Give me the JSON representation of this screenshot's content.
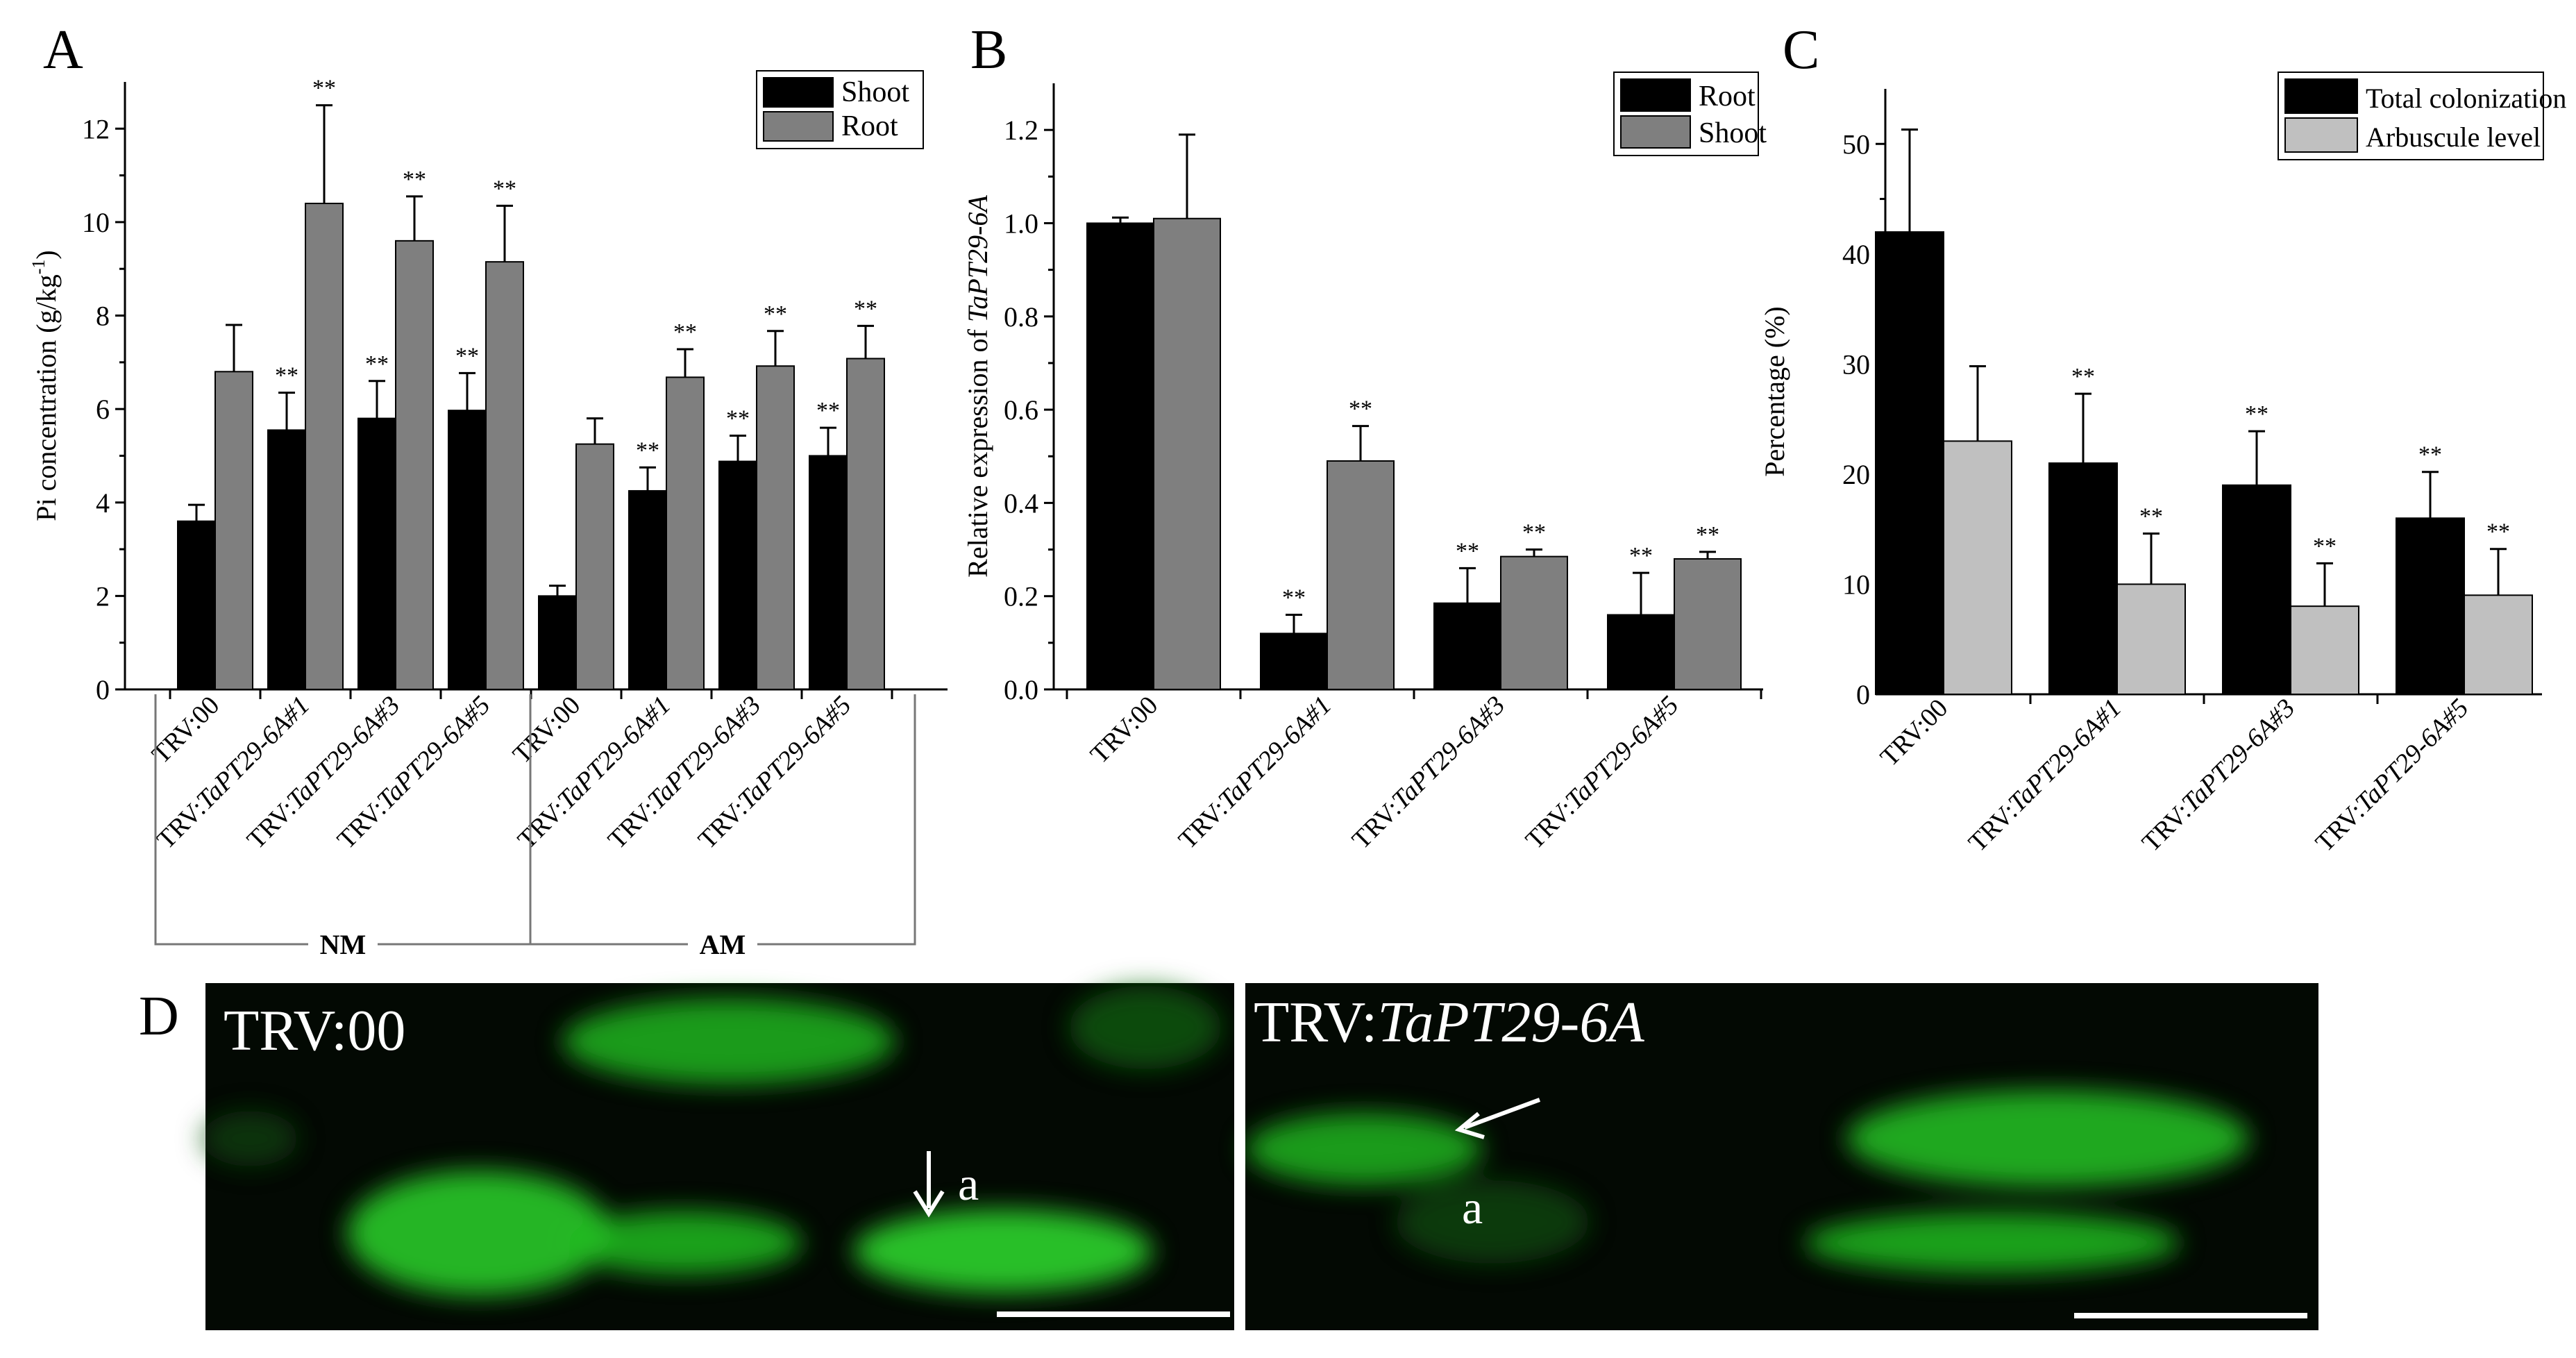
{
  "colors": {
    "black": "#000000",
    "dark_gray": "#7f7f7f",
    "light_gray": "#c0c0c0",
    "fluor": "#22cc22"
  },
  "significance_mark": "**",
  "chart_data": [
    {
      "panel": "A",
      "type": "bar",
      "ylabel": "Pi concentration (g/kg",
      "ylabel_sup": "-1",
      "ylabel_end": ")",
      "ylim": [
        0,
        13
      ],
      "yticks": [
        "0",
        "2",
        "4",
        "6",
        "8",
        "10",
        "12"
      ],
      "legend_position": "top-right",
      "categories": [
        {
          "pre": "TRV:00",
          "it": ""
        },
        {
          "pre": "TRV:",
          "it": "TaPT29-6A#1"
        },
        {
          "pre": "TRV:",
          "it": "TaPT29-6A#3"
        },
        {
          "pre": "TRV:",
          "it": "TaPT29-6A#5"
        },
        {
          "pre": "TRV:00",
          "it": ""
        },
        {
          "pre": "TRV:",
          "it": "TaPT29-6A#1"
        },
        {
          "pre": "TRV:",
          "it": "TaPT29-6A#3"
        },
        {
          "pre": "TRV:",
          "it": "TaPT29-6A#5"
        }
      ],
      "groups": [
        "NM",
        "AM"
      ],
      "series": [
        {
          "name": "Shoot",
          "color": "#000000",
          "values": [
            3.6,
            5.55,
            5.8,
            5.97,
            2.0,
            4.25,
            4.88,
            5.0
          ],
          "errors": [
            0.35,
            0.8,
            0.8,
            0.8,
            0.22,
            0.5,
            0.55,
            0.6
          ],
          "sig": [
            false,
            true,
            true,
            true,
            false,
            true,
            true,
            true
          ]
        },
        {
          "name": "Root",
          "color": "#7f7f7f",
          "values": [
            6.8,
            10.4,
            9.6,
            9.15,
            5.25,
            6.68,
            6.92,
            7.08
          ],
          "errors": [
            1.0,
            2.1,
            0.95,
            1.2,
            0.55,
            0.6,
            0.75,
            0.7
          ],
          "sig": [
            false,
            true,
            true,
            true,
            false,
            true,
            true,
            true
          ]
        }
      ]
    },
    {
      "panel": "B",
      "type": "bar",
      "ylabel": "Relative expression of ",
      "ylabel_it": "TaPT29-6A",
      "ylim": [
        0,
        1.3
      ],
      "yticks": [
        "0.0",
        "0.2",
        "0.4",
        "0.6",
        "0.8",
        "1.0",
        "1.2"
      ],
      "legend_position": "top-right",
      "categories": [
        {
          "pre": "TRV:00",
          "it": ""
        },
        {
          "pre": "TRV:",
          "it": "TaPT29-6A#1"
        },
        {
          "pre": "TRV:",
          "it": "TaPT29-6A#3"
        },
        {
          "pre": "TRV:",
          "it": "TaPT29-6A#5"
        }
      ],
      "series": [
        {
          "name": "Root",
          "color": "#000000",
          "values": [
            1.0,
            0.12,
            0.185,
            0.16
          ],
          "errors": [
            0.012,
            0.04,
            0.075,
            0.09
          ],
          "sig": [
            false,
            true,
            true,
            true
          ]
        },
        {
          "name": "Shoot",
          "color": "#7f7f7f",
          "values": [
            1.01,
            0.49,
            0.285,
            0.28
          ],
          "errors": [
            0.18,
            0.075,
            0.015,
            0.015
          ],
          "sig": [
            false,
            true,
            true,
            true
          ]
        }
      ]
    },
    {
      "panel": "C",
      "type": "bar",
      "ylabel": "Percentage (%)",
      "ylim": [
        0,
        55
      ],
      "yticks": [
        "0",
        "10",
        "20",
        "30",
        "40",
        "50"
      ],
      "legend_position": "top-right",
      "categories": [
        {
          "pre": "TRV:00",
          "it": ""
        },
        {
          "pre": "TRV:",
          "it": "TaPT29-6A#1"
        },
        {
          "pre": "TRV:",
          "it": "TaPT29-6A#3"
        },
        {
          "pre": "TRV:",
          "it": "TaPT29-6A#5"
        }
      ],
      "series": [
        {
          "name": "Total colonization",
          "color": "#000000",
          "values": [
            42,
            21,
            19,
            16
          ],
          "errors": [
            9.3,
            6.3,
            4.9,
            4.2
          ],
          "sig": [
            false,
            true,
            true,
            true
          ]
        },
        {
          "name": "Arbuscule level",
          "color": "#c0c0c0",
          "values": [
            23,
            10,
            8,
            9
          ],
          "errors": [
            6.8,
            4.6,
            3.9,
            4.2
          ],
          "sig": [
            false,
            true,
            true,
            true
          ]
        }
      ]
    }
  ],
  "panel_d": {
    "letter": "D",
    "left": {
      "label": "TRV:00",
      "arrow_label": "a"
    },
    "right": {
      "label_pre": "TRV:",
      "label_it": "TaPT29-6A",
      "arrow_label": "a"
    }
  }
}
